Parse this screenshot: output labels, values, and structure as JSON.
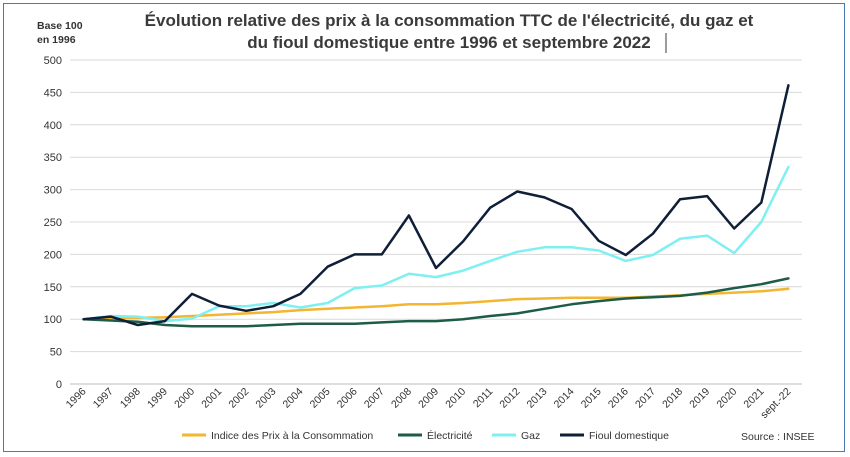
{
  "chart_data": {
    "type": "line",
    "title": "Évolution relative des prix à la consommation TTC de l'électricité, du gaz et du fioul domestique entre 1996 et septembre 2022",
    "title_lines": [
      "Évolution relative des prix à la consommation TTC de l'électricité, du gaz et",
      "du fioul domestique entre 1996 et septembre 2022"
    ],
    "y_unit_lines": [
      "Base 100",
      "en 1996"
    ],
    "source": "Source : INSEE",
    "xlabel": "",
    "ylabel": "",
    "ylim": [
      0,
      500
    ],
    "yticks": [
      0,
      50,
      100,
      150,
      200,
      250,
      300,
      350,
      400,
      450,
      500
    ],
    "grid": true,
    "legend_position": "bottom",
    "x": [
      "1996",
      "1997",
      "1998",
      "1999",
      "2000",
      "2001",
      "2002",
      "2003",
      "2004",
      "2005",
      "2006",
      "2007",
      "2008",
      "2009",
      "2010",
      "2011",
      "2012",
      "2013",
      "2014",
      "2015",
      "2016",
      "2017",
      "2018",
      "2019",
      "2020",
      "2021",
      "sept.-22"
    ],
    "series": [
      {
        "name": "Indice des Prix à la Consommation",
        "color": "#f2b630",
        "values": [
          100,
          101,
          102,
          103,
          105,
          107,
          109,
          111,
          114,
          116,
          118,
          120,
          123,
          123,
          125,
          128,
          131,
          132,
          133,
          133,
          133,
          135,
          137,
          139,
          141,
          143,
          147
        ]
      },
      {
        "name": "Électricité",
        "color": "#1f5c47",
        "values": [
          100,
          98,
          96,
          91,
          89,
          89,
          89,
          91,
          93,
          93,
          93,
          95,
          97,
          97,
          100,
          105,
          109,
          116,
          123,
          128,
          132,
          134,
          136,
          141,
          148,
          154,
          163
        ]
      },
      {
        "name": "Gaz",
        "color": "#7ff0f2",
        "values": [
          100,
          105,
          104,
          97,
          101,
          120,
          120,
          125,
          118,
          125,
          148,
          152,
          170,
          165,
          175,
          190,
          204,
          211,
          211,
          206,
          190,
          199,
          224,
          229,
          202,
          250,
          335
        ]
      },
      {
        "name": "Fioul domestique",
        "color": "#0f1f38",
        "values": [
          100,
          104,
          91,
          97,
          139,
          121,
          113,
          120,
          139,
          181,
          200,
          200,
          260,
          179,
          220,
          272,
          297,
          288,
          270,
          221,
          199,
          232,
          285,
          290,
          240,
          280,
          461
        ]
      }
    ]
  }
}
